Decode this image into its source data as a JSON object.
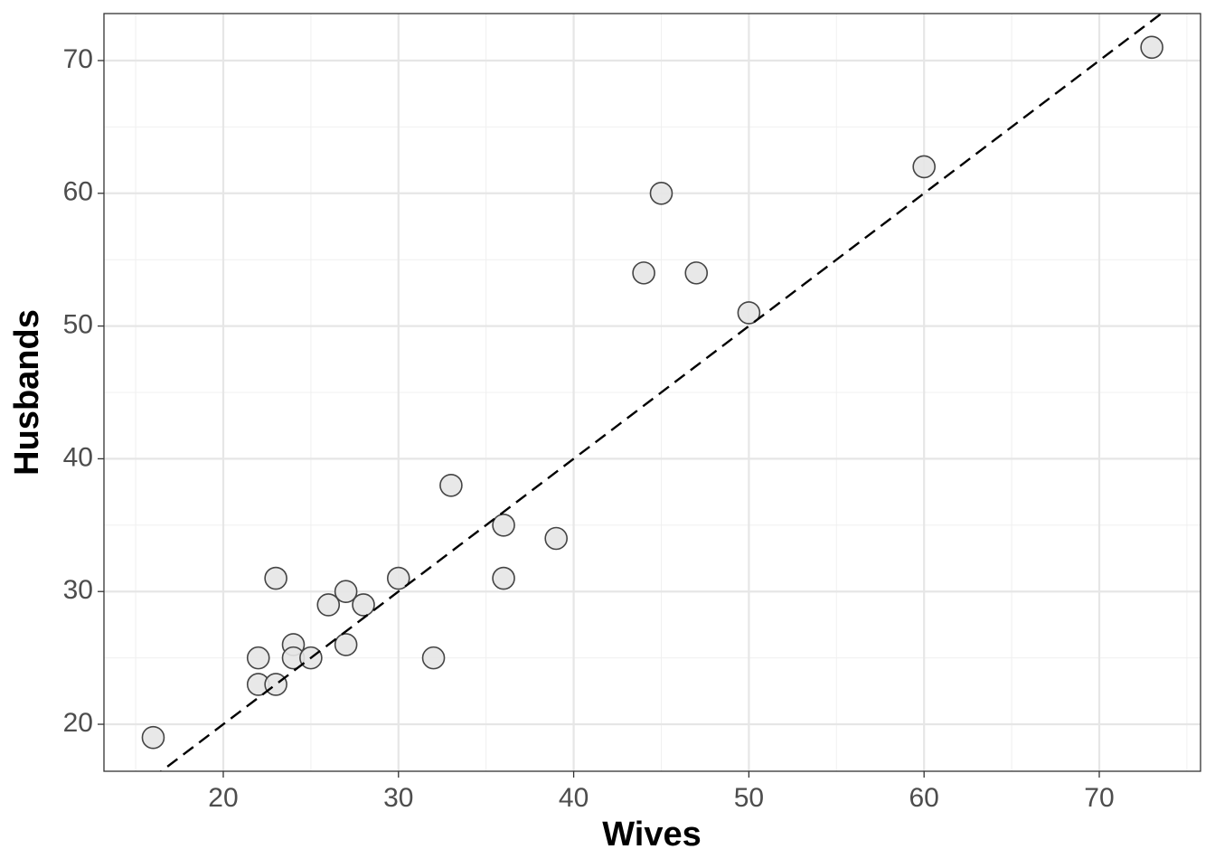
{
  "chart_data": {
    "type": "scatter",
    "x_label": "Wives",
    "y_label": "Husbands",
    "x": [
      16,
      22,
      22,
      23,
      23,
      24,
      24,
      25,
      26,
      27,
      27,
      28,
      30,
      32,
      33,
      36,
      36,
      39,
      44,
      45,
      47,
      50,
      60,
      73
    ],
    "values": [
      19,
      25,
      23,
      31,
      23,
      26,
      25,
      25,
      29,
      30,
      26,
      29,
      31,
      25,
      38,
      35,
      31,
      34,
      54,
      60,
      54,
      51,
      62,
      71
    ],
    "color": "#e6e6e6",
    "xlim": [
      13.19,
      75.78
    ],
    "ylim": [
      16.46,
      73.54
    ],
    "xticks": [
      20,
      30,
      40,
      50,
      60,
      70
    ],
    "yticks": [
      20,
      30,
      40,
      50,
      60,
      70
    ],
    "x_minor_grid": [
      15,
      25,
      35,
      45,
      55,
      65,
      75
    ],
    "y_minor_grid": [
      25,
      35,
      45,
      55,
      65
    ],
    "grid": true,
    "identity_line": true
  }
}
